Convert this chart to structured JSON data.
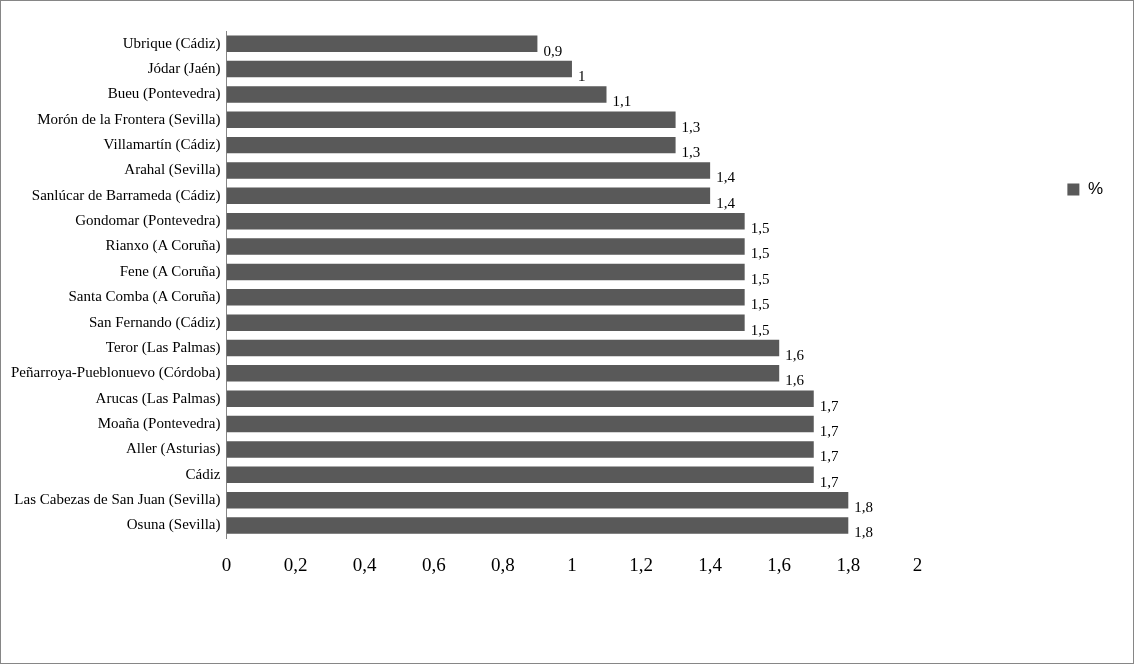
{
  "chart_data": {
    "type": "bar",
    "orientation": "horizontal",
    "categories": [
      "Ubrique (Cádiz)",
      "Jódar (Jaén)",
      "Bueu (Pontevedra)",
      "Morón de la Frontera (Sevilla)",
      "Villamartín (Cádiz)",
      "Arahal (Sevilla)",
      "Sanlúcar de Barrameda (Cádiz)",
      "Gondomar (Pontevedra)",
      "Rianxo (A Coruña)",
      "Fene (A Coruña)",
      "Santa Comba (A Coruña)",
      "San Fernando (Cádiz)",
      "Teror (Las Palmas)",
      "Peñarroya-Pueblonuevo (Córdoba)",
      "Arucas (Las Palmas)",
      "Moaña (Pontevedra)",
      "Aller (Asturias)",
      "Cádiz",
      "Las Cabezas de San Juan (Sevilla)",
      "Osuna (Sevilla)"
    ],
    "series": [
      {
        "name": "%",
        "color": "#595959",
        "values": [
          0.9,
          1,
          1.1,
          1.3,
          1.3,
          1.4,
          1.4,
          1.5,
          1.5,
          1.5,
          1.5,
          1.5,
          1.6,
          1.6,
          1.7,
          1.7,
          1.7,
          1.7,
          1.8,
          1.8
        ],
        "value_labels": [
          "0,9",
          "1",
          "1,1",
          "1,3",
          "1,3",
          "1,4",
          "1,4",
          "1,5",
          "1,5",
          "1,5",
          "1,5",
          "1,5",
          "1,6",
          "1,6",
          "1,7",
          "1,7",
          "1,7",
          "1,7",
          "1,8",
          "1,8"
        ]
      }
    ],
    "xlim": [
      0,
      2
    ],
    "xticks": [
      0,
      {
        "value": 0.2,
        "label": "0,2"
      },
      {
        "value": 0.4,
        "label": "0,4"
      },
      {
        "value": 0.6,
        "label": "0,6"
      },
      {
        "value": 0.8,
        "label": "0,8"
      },
      1,
      {
        "value": 1.2,
        "label": "1,2"
      },
      {
        "value": 1.4,
        "label": "1,4"
      },
      {
        "value": 1.6,
        "label": "1,6"
      },
      {
        "value": 1.8,
        "label": "1,8"
      },
      2
    ],
    "grid": false,
    "legend": "right"
  }
}
